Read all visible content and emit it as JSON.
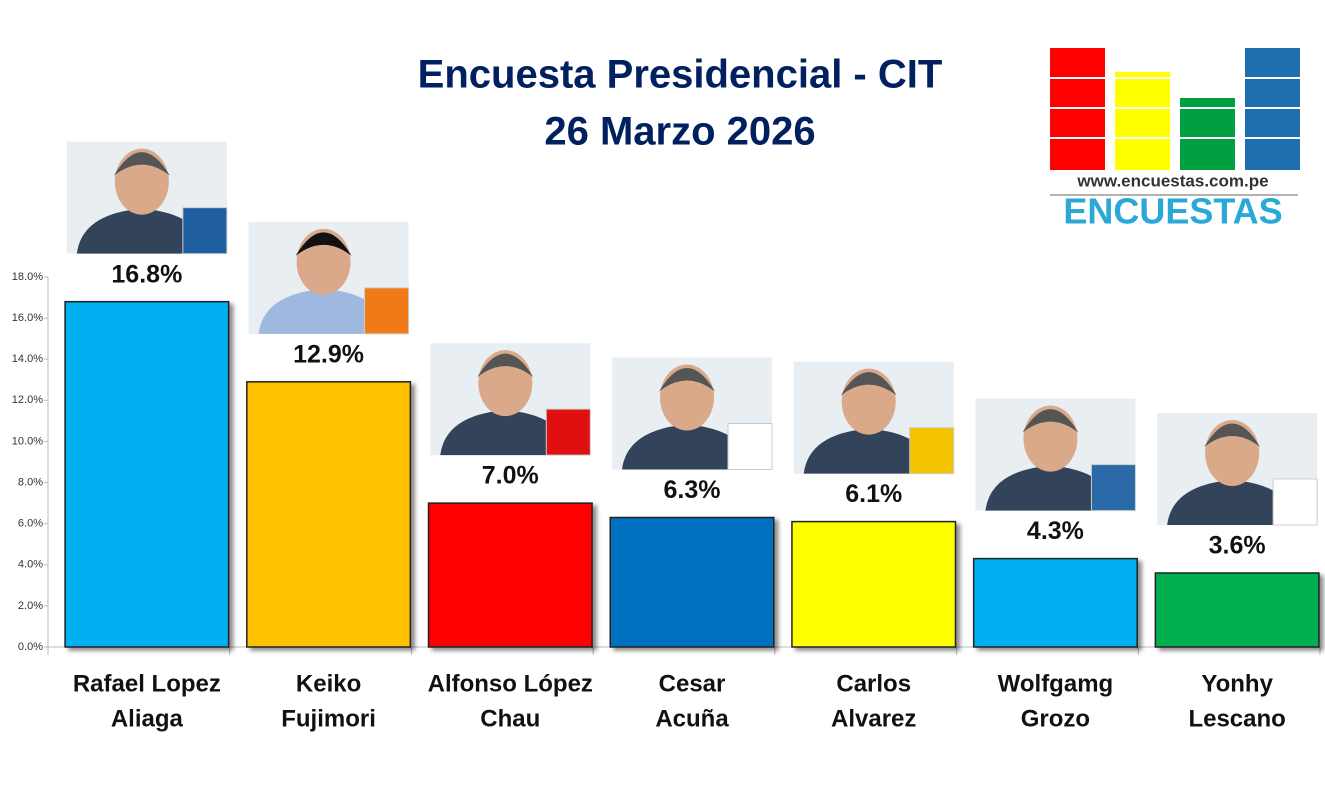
{
  "chart_data": {
    "type": "bar",
    "title": [
      "Encuesta Presidencial - CIT",
      "26 Marzo 2026"
    ],
    "categories": [
      [
        "Rafael Lopez",
        "Aliaga"
      ],
      [
        "Keiko",
        "Fujimori"
      ],
      [
        "Alfonso López",
        "Chau"
      ],
      [
        "Cesar",
        "Acuña"
      ],
      [
        "Carlos",
        "Alvarez"
      ],
      [
        "Wolfgamg",
        "Grozo"
      ],
      [
        "Yonhy",
        "Lescano"
      ]
    ],
    "values": [
      16.8,
      12.9,
      7.0,
      6.3,
      6.1,
      4.3,
      3.6
    ],
    "value_labels": [
      "16.8%",
      "12.9%",
      "7.0%",
      "6.3%",
      "6.1%",
      "4.3%",
      "3.6%"
    ],
    "colors": [
      "#00b0f0",
      "#ffc000",
      "#ff0000",
      "#0070c0",
      "#ffff00",
      "#00b0f0",
      "#00b050"
    ],
    "ylim": [
      0,
      18
    ],
    "yticks": [
      {
        "value": 0,
        "label": "0.0%"
      },
      {
        "value": 2,
        "label": "2.0%"
      },
      {
        "value": 4,
        "label": "4.0%"
      },
      {
        "value": 6,
        "label": "6.0%"
      },
      {
        "value": 8,
        "label": "8.0%"
      },
      {
        "value": 10,
        "label": "10.0%"
      },
      {
        "value": 12,
        "label": "12.0%"
      },
      {
        "value": 14,
        "label": "14.0%"
      },
      {
        "value": 16,
        "label": "16.0%"
      },
      {
        "value": 18,
        "label": "18.0%"
      }
    ],
    "grid": false
  },
  "logo": {
    "url": "www.encuestas.com.pe",
    "name": "ENCUESTAS"
  }
}
